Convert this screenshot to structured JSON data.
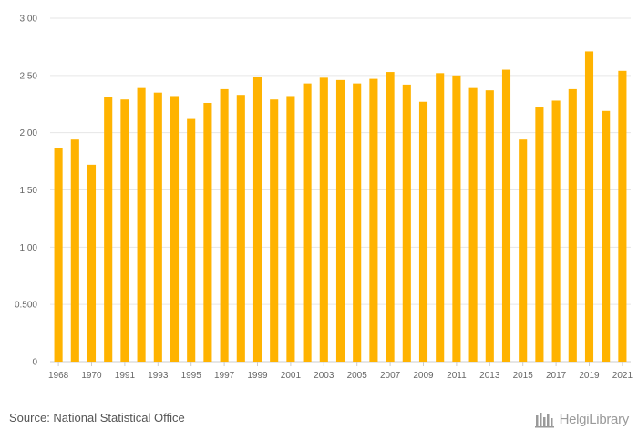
{
  "chart_data": {
    "type": "bar",
    "categories": [
      "1968",
      "1969",
      "1970",
      "1971",
      "1991",
      "1992",
      "1993",
      "1994",
      "1995",
      "1996",
      "1997",
      "1998",
      "1999",
      "2000",
      "2001",
      "2002",
      "2003",
      "2004",
      "2005",
      "2006",
      "2007",
      "2008",
      "2009",
      "2010",
      "2011",
      "2012",
      "2013",
      "2014",
      "2015",
      "2016",
      "2017",
      "2018",
      "2019",
      "2020",
      "2021"
    ],
    "values": [
      1.87,
      1.94,
      1.72,
      2.31,
      2.29,
      2.39,
      2.35,
      2.32,
      2.12,
      2.26,
      2.38,
      2.33,
      2.49,
      2.29,
      2.32,
      2.43,
      2.48,
      2.46,
      2.43,
      2.47,
      2.53,
      2.42,
      2.27,
      2.52,
      2.5,
      2.39,
      2.37,
      2.55,
      1.94,
      2.22,
      2.28,
      2.38,
      2.71,
      2.19,
      2.54
    ],
    "visible_x_ticks": [
      "1968",
      "1970",
      "1991",
      "1993",
      "1995",
      "1997",
      "1999",
      "2001",
      "2003",
      "2005",
      "2007",
      "2009",
      "2011",
      "2013",
      "2015",
      "2017",
      "2019",
      "2021"
    ],
    "y_ticks": [
      "0",
      "0.500",
      "1.00",
      "1.50",
      "2.00",
      "2.50",
      "3.00"
    ],
    "ylim": [
      0,
      3
    ],
    "bar_color": "#FFB300",
    "grid": true
  },
  "footer": {
    "source": "Source: National Statistical Office",
    "brand": "HelgiLibrary"
  },
  "colors": {
    "grid": "#e6e6e6",
    "axis": "#cccccc",
    "brand": "#9a9a9a"
  }
}
